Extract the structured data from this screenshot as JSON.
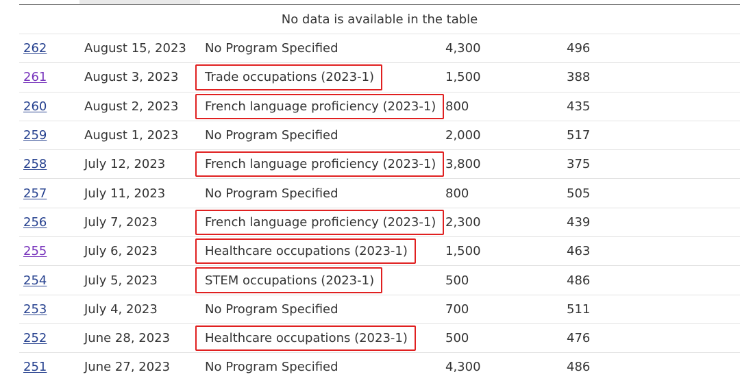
{
  "table": {
    "empty_message": "No data is available in the table",
    "rows": [
      {
        "number": "262",
        "date": "August 15, 2023",
        "program": "No Program Specified",
        "invitations": "4,300",
        "crs": "496",
        "visited": false,
        "highlighted": false
      },
      {
        "number": "261",
        "date": "August 3, 2023",
        "program": "Trade occupations (2023-1)",
        "invitations": "1,500",
        "crs": "388",
        "visited": true,
        "highlighted": true
      },
      {
        "number": "260",
        "date": "August 2, 2023",
        "program": "French language proficiency (2023-1)",
        "invitations": "800",
        "crs": "435",
        "visited": false,
        "highlighted": true
      },
      {
        "number": "259",
        "date": "August 1, 2023",
        "program": "No Program Specified",
        "invitations": "2,000",
        "crs": "517",
        "visited": false,
        "highlighted": false
      },
      {
        "number": "258",
        "date": "July 12, 2023",
        "program": "French language proficiency (2023-1)",
        "invitations": "3,800",
        "crs": "375",
        "visited": false,
        "highlighted": true
      },
      {
        "number": "257",
        "date": "July 11, 2023",
        "program": "No Program Specified",
        "invitations": "800",
        "crs": "505",
        "visited": false,
        "highlighted": false
      },
      {
        "number": "256",
        "date": "July 7, 2023",
        "program": "French language proficiency (2023-1)",
        "invitations": "2,300",
        "crs": "439",
        "visited": false,
        "highlighted": true
      },
      {
        "number": "255",
        "date": "July 6, 2023",
        "program": "Healthcare occupations (2023-1)",
        "invitations": "1,500",
        "crs": "463",
        "visited": true,
        "highlighted": true
      },
      {
        "number": "254",
        "date": "July 5, 2023",
        "program": "STEM occupations (2023-1)",
        "invitations": "500",
        "crs": "486",
        "visited": false,
        "highlighted": true
      },
      {
        "number": "253",
        "date": "July 4, 2023",
        "program": "No Program Specified",
        "invitations": "700",
        "crs": "511",
        "visited": false,
        "highlighted": false
      },
      {
        "number": "252",
        "date": "June 28, 2023",
        "program": "Healthcare occupations (2023-1)",
        "invitations": "500",
        "crs": "476",
        "visited": false,
        "highlighted": true
      },
      {
        "number": "251",
        "date": "June 27, 2023",
        "program": "No Program Specified",
        "invitations": "4,300",
        "crs": "486",
        "visited": false,
        "highlighted": false
      }
    ]
  },
  "colors": {
    "link": "#26418f",
    "link_visited": "#7834bc",
    "highlight_box": "#e02020",
    "row_border": "#e3e3e3"
  }
}
